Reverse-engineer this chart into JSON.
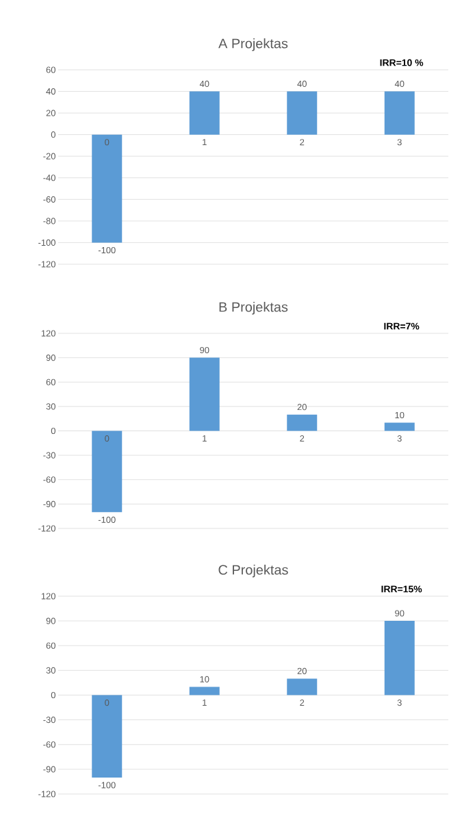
{
  "chart_data": [
    {
      "type": "bar",
      "title": "A Projektas",
      "categories": [
        "0",
        "1",
        "2",
        "3"
      ],
      "values": [
        -100,
        40,
        40,
        40
      ],
      "color": "#5b9bd5",
      "ylim": [
        -120,
        60
      ],
      "yticks": [
        -120,
        -100,
        -80,
        -60,
        -40,
        -20,
        0,
        20,
        40,
        60
      ],
      "grid": "y",
      "data_labels": true,
      "annotations": [
        "IRR=10 %"
      ]
    },
    {
      "type": "bar",
      "title": "B Projektas",
      "categories": [
        "0",
        "1",
        "2",
        "3"
      ],
      "values": [
        -100,
        90,
        20,
        10
      ],
      "color": "#5b9bd5",
      "ylim": [
        -120,
        120
      ],
      "yticks": [
        -120,
        -90,
        -60,
        -30,
        0,
        30,
        60,
        90,
        120
      ],
      "grid": "y",
      "data_labels": true,
      "annotations": [
        "IRR=7%"
      ]
    },
    {
      "type": "bar",
      "title": "C Projektas",
      "categories": [
        "0",
        "1",
        "2",
        "3"
      ],
      "values": [
        -100,
        10,
        20,
        90
      ],
      "color": "#5b9bd5",
      "ylim": [
        -120,
        120
      ],
      "yticks": [
        -120,
        -90,
        -60,
        -30,
        0,
        30,
        60,
        90,
        120
      ],
      "grid": "y",
      "data_labels": true,
      "annotations": [
        "IRR=15%"
      ]
    }
  ]
}
